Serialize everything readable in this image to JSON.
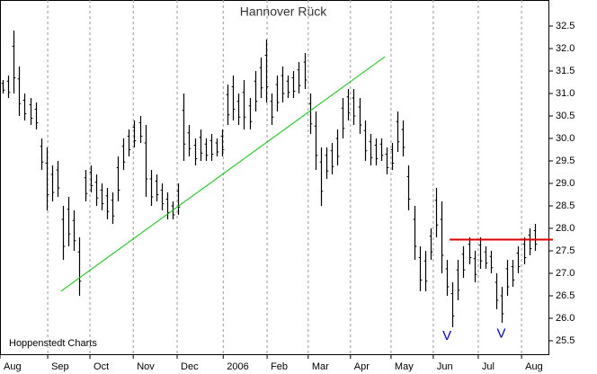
{
  "chart_data": {
    "type": "range-bar",
    "title": "Hannover Rück",
    "source": "Hoppenstedt Charts",
    "color": "#000000",
    "xlim": [
      0,
      100
    ],
    "ylim": [
      25.2,
      33.08
    ],
    "xticks": [
      {
        "value": 0,
        "label": "Aug"
      },
      {
        "value": 8.7,
        "label": "Sep"
      },
      {
        "value": 16.4,
        "label": "Oct"
      },
      {
        "value": 24.3,
        "label": "Nov"
      },
      {
        "value": 32.3,
        "label": "Dec"
      },
      {
        "value": 40.7,
        "label": "2006"
      },
      {
        "value": 48.7,
        "label": "Feb"
      },
      {
        "value": 56.2,
        "label": "Mar"
      },
      {
        "value": 63.9,
        "label": "Apr"
      },
      {
        "value": 71.3,
        "label": "May"
      },
      {
        "value": 79,
        "label": "Jun"
      },
      {
        "value": 87.2,
        "label": "Jul"
      },
      {
        "value": 95.1,
        "label": "Aug"
      }
    ],
    "yticks": [
      25.5,
      {
        "value": 26,
        "label": "26.0"
      },
      26.5,
      {
        "value": 27,
        "label": "27.0"
      },
      27.5,
      {
        "value": 28,
        "label": "28.0"
      },
      28.5,
      {
        "value": 29,
        "label": "29.0"
      },
      29.5,
      {
        "value": 30,
        "label": "30.0"
      },
      30.5,
      {
        "value": 31,
        "label": "31.0"
      },
      31.5,
      {
        "value": 32,
        "label": "32.0"
      },
      32.5
    ],
    "high": [
      31.3,
      31.4,
      32.4,
      31.6,
      31.0,
      30.9,
      30.8,
      30.0,
      29.8,
      29.4,
      29.5,
      28.5,
      28.7,
      28.4,
      27.8,
      29.3,
      29.4,
      29.2,
      29.0,
      28.9,
      28.8,
      29.6,
      30.0,
      30.2,
      30.4,
      30.5,
      30.3,
      29.3,
      29.2,
      29.0,
      28.8,
      28.6,
      29.0,
      31.0,
      30.3,
      30.0,
      30.2,
      30.0,
      30.1,
      30.0,
      30.2,
      31.2,
      31.4,
      31.0,
      31.3,
      30.9,
      31.5,
      31.8,
      32.2,
      31.0,
      31.4,
      31.6,
      31.4,
      31.5,
      31.7,
      31.9,
      31.0,
      30.6,
      29.8,
      29.8,
      29.9,
      30.2,
      30.9,
      31.1,
      31.1,
      30.9,
      30.4,
      30.1,
      30.0,
      30.0,
      29.8,
      29.9,
      30.6,
      30.4,
      29.4,
      28.5,
      27.6,
      27.5,
      28.0,
      28.9,
      28.6,
      27.3,
      26.8,
      27.3,
      27.6,
      27.8,
      27.5,
      27.8,
      27.6,
      27.5,
      27.0,
      26.7,
      27.3,
      27.3,
      27.6,
      27.8,
      28.0,
      28.1
    ],
    "low": [
      31.0,
      30.9,
      31.0,
      30.5,
      30.4,
      30.3,
      30.2,
      29.3,
      28.4,
      28.6,
      28.7,
      27.3,
      27.6,
      27.5,
      26.5,
      28.6,
      28.8,
      28.5,
      28.4,
      28.2,
      28.1,
      28.6,
      29.3,
      29.6,
      29.8,
      29.9,
      28.7,
      28.5,
      28.6,
      28.4,
      28.2,
      28.2,
      28.3,
      29.5,
      29.6,
      29.4,
      29.5,
      29.5,
      29.5,
      29.6,
      29.6,
      30.3,
      30.4,
      30.3,
      30.2,
      30.2,
      30.6,
      30.9,
      30.8,
      30.3,
      30.6,
      30.8,
      30.9,
      30.9,
      31.0,
      31.1,
      30.1,
      29.3,
      28.5,
      29.1,
      29.2,
      29.4,
      30.0,
      30.4,
      30.3,
      30.1,
      29.5,
      29.4,
      29.4,
      29.5,
      29.2,
      29.3,
      29.7,
      29.6,
      28.4,
      27.3,
      26.6,
      26.6,
      27.3,
      27.8,
      27.0,
      26.5,
      25.8,
      26.4,
      26.9,
      27.2,
      26.8,
      27.1,
      27.1,
      27.0,
      26.2,
      25.9,
      26.5,
      26.7,
      27.0,
      27.2,
      27.4,
      27.5
    ],
    "trendlines": [
      {
        "color": "#00cc00",
        "x": [
          11.1,
          70.2
        ],
        "y": [
          26.6,
          31.82
        ]
      },
      {
        "color": "#dd0000",
        "x": [
          82,
          100.8
        ],
        "y": [
          27.75,
          27.75
        ]
      }
    ],
    "annotations": [
      {
        "text": "V",
        "color": "#0000cc",
        "x": 81.5,
        "y": 25.6
      },
      {
        "text": "V",
        "color": "#0000cc",
        "x": 91.4,
        "y": 25.65
      }
    ]
  }
}
